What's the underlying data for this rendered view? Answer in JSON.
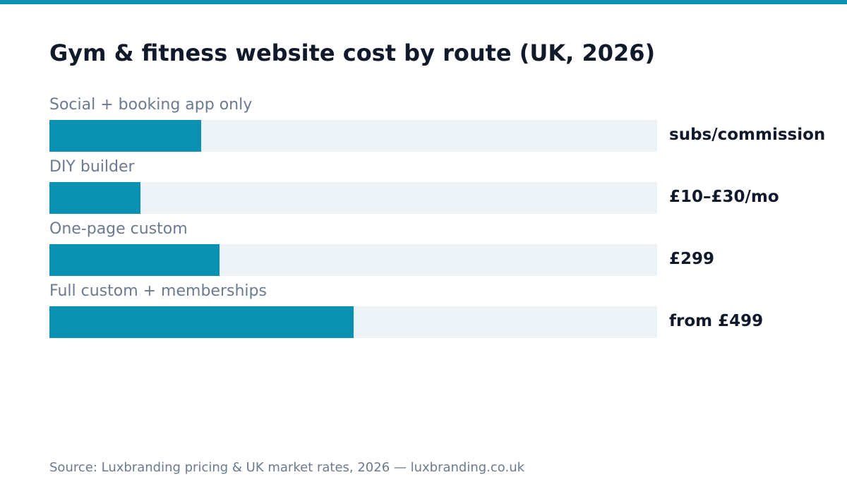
{
  "colors": {
    "accent": "#0891b2",
    "track": "#edf2f7",
    "title": "#111a2b",
    "muted": "#6b7a8f"
  },
  "chart_data": {
    "type": "bar",
    "orientation": "horizontal",
    "title": "Gym & fitness website cost by route (UK, 2026)",
    "categories": [
      "Social + booking app only",
      "DIY builder",
      "One-page custom",
      "Full custom + memberships"
    ],
    "values": [
      0.25,
      0.15,
      0.28,
      0.5
    ],
    "value_labels": [
      "subs/commission",
      "£10–£30/mo",
      "£299",
      "from £499"
    ],
    "xlim": [
      0,
      1
    ],
    "grid": false,
    "legend": "none"
  },
  "footer": {
    "source": "Source: Luxbranding pricing & UK market rates, 2026 — luxbranding.co.uk"
  }
}
